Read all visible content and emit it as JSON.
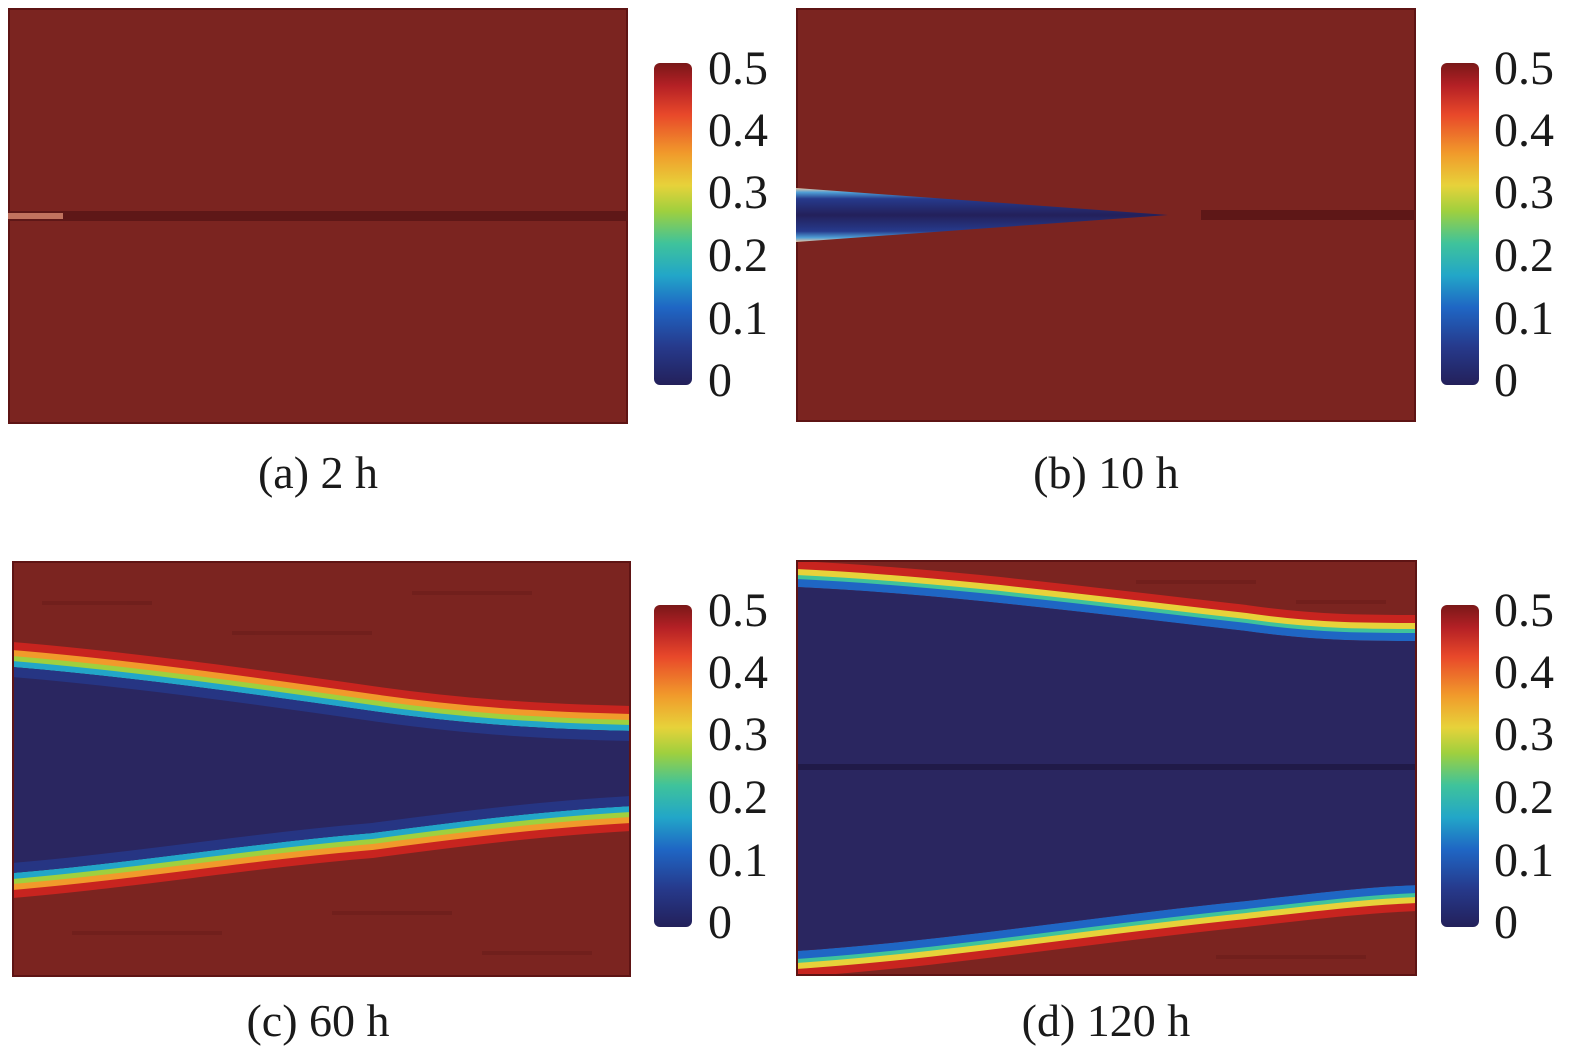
{
  "colorbar": {
    "ticks": [
      "0.5",
      "0.4",
      "0.3",
      "0.2",
      "0.1",
      "0"
    ]
  },
  "panels": [
    {
      "caption": "(a) 2 h"
    },
    {
      "caption": "(b) 10 h"
    },
    {
      "caption": "(c) 60 h"
    },
    {
      "caption": "(d) 120 h"
    }
  ],
  "colors": {
    "high": "#7b2420",
    "low": "#2a2660",
    "colormap": [
      "#23205a",
      "#263a8c",
      "#1f66c4",
      "#22a6c8",
      "#3fc39b",
      "#9fd03e",
      "#e7d23a",
      "#f19a2b",
      "#e8482a",
      "#b42025",
      "#7a1818"
    ]
  }
}
